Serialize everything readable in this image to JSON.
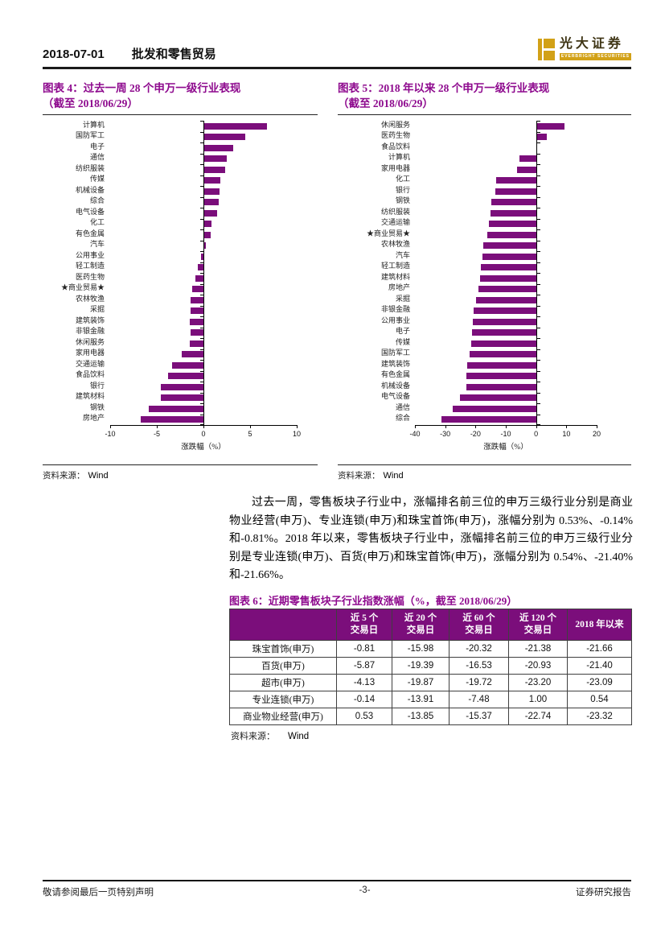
{
  "page": {
    "header": {
      "date": "2018-07-01",
      "section": "批发和零售贸易"
    },
    "logo": {
      "brand_cn": "光大证券",
      "brand_en": "EVERBRIGHT SECURITIES"
    },
    "footer": {
      "left": "敬请参阅最后一页特别声明",
      "page_number": "-3-",
      "right": "证券研究报告"
    },
    "colors": {
      "accent_purple": "#7B0E7B",
      "title_purple": "#8E0A8E",
      "logo_gold": "#D2A117"
    }
  },
  "paragraph": {
    "text": "过去一周，零售板块子行业中，涨幅排名前三位的申万三级行业分别是商业物业经营(申万)、专业连锁(申万)和珠宝首饰(申万)，涨幅分别为 0.53%、-0.14%和-0.81%。2018 年以来，零售板块子行业中，涨幅排名前三位的申万三级行业分别是专业连锁(申万)、百货(申万)和珠宝首饰(申万)，涨幅分别为 0.54%、-21.40%和-21.66%。"
  },
  "chart_data": [
    {
      "type": "bar",
      "orientation": "horizontal",
      "title": "图表 4：过去一周 28 个申万一级行业表现",
      "subtitle": "（截至 2018/06/29）",
      "xlabel": "涨跌幅（%）",
      "xlim": [
        -10,
        10
      ],
      "xticks": [
        -10,
        -5,
        0,
        5,
        10
      ],
      "bar_color": "#7B0E7B",
      "grid": false,
      "source_label": "资料来源：",
      "source_value": "Wind",
      "categories": [
        "计算机",
        "国防军工",
        "电子",
        "通信",
        "纺织服装",
        "传媒",
        "机械设备",
        "综合",
        "电气设备",
        "化工",
        "有色金属",
        "汽车",
        "公用事业",
        "轻工制造",
        "医药生物",
        "★商业贸易★",
        "农林牧渔",
        "采掘",
        "建筑装饰",
        "非银金融",
        "休闲服务",
        "家用电器",
        "交通运输",
        "食品饮料",
        "银行",
        "建筑材料",
        "钢铁",
        "房地产"
      ],
      "values": [
        6.8,
        4.5,
        3.2,
        2.5,
        2.3,
        1.8,
        1.7,
        1.6,
        1.5,
        0.9,
        0.8,
        0.3,
        -0.3,
        -0.6,
        -0.9,
        -1.2,
        -1.4,
        -1.4,
        -1.5,
        -1.4,
        -1.5,
        -2.3,
        -3.4,
        -3.8,
        -4.6,
        -4.6,
        -5.9,
        -6.7
      ]
    },
    {
      "type": "bar",
      "orientation": "horizontal",
      "title": "图表 5：2018 年以来 28 个申万一级行业表现",
      "subtitle": "（截至 2018/06/29）",
      "xlabel": "涨跌幅（%）",
      "xlim": [
        -40,
        20
      ],
      "xticks": [
        -40,
        -30,
        -20,
        -10,
        0,
        10,
        20
      ],
      "bar_color": "#7B0E7B",
      "grid": false,
      "source_label": "资料来源：",
      "source_value": "Wind",
      "categories": [
        "休闲服务",
        "医药生物",
        "食品饮料",
        "计算机",
        "家用电器",
        "化工",
        "银行",
        "钢铁",
        "纺织服装",
        "交通运输",
        "★商业贸易★",
        "农林牧渔",
        "汽车",
        "轻工制造",
        "建筑材料",
        "房地产",
        "采掘",
        "非银金融",
        "公用事业",
        "电子",
        "传媒",
        "国防军工",
        "建筑装饰",
        "有色金属",
        "机械设备",
        "电气设备",
        "通信",
        "综合"
      ],
      "values": [
        9.4,
        3.5,
        0.4,
        -5.5,
        -6.4,
        -13.2,
        -13.4,
        -14.9,
        -15.1,
        -15.6,
        -16.2,
        -17.5,
        -17.8,
        -18.2,
        -18.6,
        -19.0,
        -19.9,
        -20.7,
        -20.8,
        -21.2,
        -21.4,
        -22.0,
        -22.7,
        -23.0,
        -23.0,
        -25.2,
        -27.4,
        -31.3
      ]
    }
  ],
  "table_fig": {
    "title": "图表 6：近期零售板块子行业指数涨幅（%，截至 2018/06/29）",
    "source_label": "资料来源：",
    "source_value": "Wind",
    "table": {
      "headers": [
        "",
        "近 5 个\n交易日",
        "近 20 个\n交易日",
        "近 60 个\n交易日",
        "近 120 个\n交易日",
        "2018 年以来"
      ],
      "rows": [
        [
          "珠宝首饰(申万)",
          "-0.81",
          "-15.98",
          "-20.32",
          "-21.38",
          "-21.66"
        ],
        [
          "百货(申万)",
          "-5.87",
          "-19.39",
          "-16.53",
          "-20.93",
          "-21.40"
        ],
        [
          "超市(申万)",
          "-4.13",
          "-19.87",
          "-19.72",
          "-23.20",
          "-23.09"
        ],
        [
          "专业连锁(申万)",
          "-0.14",
          "-13.91",
          "-7.48",
          "1.00",
          "0.54"
        ],
        [
          "商业物业经营(申万)",
          "0.53",
          "-13.85",
          "-15.37",
          "-22.74",
          "-23.32"
        ]
      ]
    }
  }
}
